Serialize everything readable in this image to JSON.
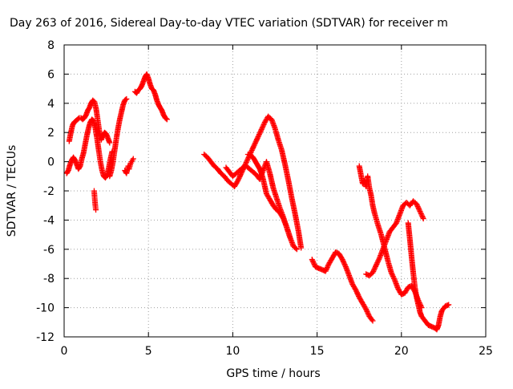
{
  "chart_data": {
    "type": "scatter",
    "title": "Day 263 of 2016, Sidereal Day-to-day VTEC variation (SDTVAR) for receiver m",
    "xlabel": "GPS time / hours",
    "ylabel": "SDTVAR / TECUs",
    "xlim": [
      0,
      25
    ],
    "ylim": [
      -12,
      8
    ],
    "xticks": [
      0,
      5,
      10,
      15,
      20,
      25
    ],
    "yticks": [
      -12,
      -10,
      -8,
      -6,
      -4,
      -2,
      0,
      2,
      4,
      6,
      8
    ],
    "grid": true,
    "marker": "plus",
    "color": "#ff0000",
    "series": [
      {
        "x": [
          0.15,
          0.25,
          0.35,
          0.45,
          0.55,
          0.65,
          0.75,
          0.85,
          0.95,
          1.05,
          1.15,
          1.25,
          1.35,
          1.45,
          1.55,
          1.65,
          1.75,
          1.85,
          1.95,
          2.05,
          2.15,
          2.25,
          2.35,
          2.45,
          2.55,
          2.65,
          2.75,
          2.85
        ],
        "y": [
          -0.8,
          -0.6,
          -0.2,
          0.1,
          0.3,
          0.1,
          -0.2,
          -0.5,
          -0.3,
          0.2,
          0.6,
          1.2,
          1.8,
          2.3,
          2.7,
          2.9,
          2.8,
          2.3,
          1.6,
          0.8,
          0.0,
          -0.6,
          -1.0,
          -1.1,
          -0.9,
          -0.4,
          0.2,
          0.7
        ]
      },
      {
        "x": [
          0.3,
          0.4,
          0.5,
          0.6,
          0.7,
          0.8,
          0.9,
          1.0,
          1.1,
          1.2,
          1.3,
          1.4,
          1.5,
          1.6,
          1.7,
          1.8,
          1.9,
          2.0,
          2.1,
          2.2,
          2.3,
          2.4,
          2.5,
          2.6,
          2.7
        ],
        "y": [
          1.4,
          2.0,
          2.5,
          2.7,
          2.8,
          2.9,
          3.0,
          3.0,
          2.9,
          3.0,
          3.2,
          3.5,
          3.7,
          4.0,
          4.2,
          4.1,
          3.6,
          2.8,
          2.0,
          1.5,
          1.8,
          2.0,
          1.9,
          1.6,
          1.3
        ]
      },
      {
        "x": [
          1.78,
          1.8,
          1.82,
          1.84,
          1.86,
          1.88
        ],
        "y": [
          -2.0,
          -2.3,
          -2.6,
          -2.9,
          -3.1,
          -3.3
        ]
      },
      {
        "x": [
          2.7,
          2.8,
          2.9,
          3.0,
          3.1,
          3.2,
          3.3,
          3.4,
          3.5,
          3.6,
          3.7
        ],
        "y": [
          -1.0,
          -0.6,
          0.0,
          0.8,
          1.6,
          2.3,
          2.9,
          3.4,
          3.9,
          4.2,
          4.3
        ]
      },
      {
        "x": [
          3.6,
          3.7,
          3.75,
          3.8,
          3.85,
          3.9,
          3.95,
          4.0,
          4.05,
          4.1
        ],
        "y": [
          -0.6,
          -0.8,
          -0.5,
          -0.3,
          -0.5,
          -0.3,
          -0.1,
          0.0,
          0.1,
          0.2
        ]
      },
      {
        "x": [
          4.2,
          4.3,
          4.4,
          4.5,
          4.6,
          4.7,
          4.8,
          4.9,
          5.0,
          5.1,
          5.2,
          5.3,
          5.4,
          5.5,
          5.6,
          5.7,
          5.8,
          5.9,
          6.0,
          6.1
        ],
        "y": [
          4.8,
          4.7,
          4.9,
          5.0,
          5.2,
          5.5,
          5.8,
          6.0,
          5.7,
          5.3,
          5.0,
          4.9,
          4.6,
          4.2,
          3.9,
          3.7,
          3.5,
          3.2,
          3.0,
          2.9
        ]
      },
      {
        "x": [
          8.3,
          8.5,
          8.7,
          8.9,
          9.1,
          9.3,
          9.5,
          9.7,
          9.9,
          10.1,
          10.3,
          10.5,
          10.7,
          10.9,
          11.1,
          11.3,
          11.5,
          11.7,
          11.9,
          12.1,
          12.3,
          12.5,
          12.7,
          12.9,
          13.1,
          13.3,
          13.5,
          13.7,
          13.9,
          14.05
        ],
        "y": [
          0.5,
          0.3,
          0.0,
          -0.3,
          -0.5,
          -0.8,
          -1.0,
          -1.3,
          -1.5,
          -1.7,
          -1.3,
          -0.8,
          -0.3,
          0.2,
          0.7,
          1.2,
          1.7,
          2.2,
          2.7,
          3.1,
          2.9,
          2.3,
          1.5,
          0.8,
          -0.2,
          -1.3,
          -2.5,
          -3.6,
          -4.8,
          -5.9
        ]
      },
      {
        "x": [
          9.6,
          9.8,
          10.0,
          10.2,
          10.4,
          10.6,
          10.8,
          11.0,
          11.2,
          11.4,
          11.6,
          11.8,
          12.0,
          12.2,
          12.4,
          12.6,
          12.8,
          13.0,
          13.2,
          13.4
        ],
        "y": [
          -0.4,
          -0.7,
          -1.0,
          -0.8,
          -0.6,
          -0.4,
          -0.3,
          -0.5,
          -0.7,
          -0.9,
          -1.2,
          -0.6,
          0.0,
          -0.8,
          -1.8,
          -2.5,
          -3.2,
          -3.8,
          -4.5,
          -5.2
        ]
      },
      {
        "x": [
          10.9,
          11.0,
          11.1,
          11.2,
          11.3,
          11.4,
          11.5,
          11.6,
          11.7,
          11.8,
          11.9,
          12.0,
          12.2,
          12.4,
          12.6,
          12.8,
          13.0,
          13.2,
          13.4,
          13.6,
          13.8
        ],
        "y": [
          0.5,
          0.5,
          0.4,
          0.3,
          0.1,
          -0.1,
          -0.3,
          -0.5,
          -0.8,
          -1.2,
          -1.7,
          -2.2,
          -2.6,
          -3.0,
          -3.3,
          -3.5,
          -3.9,
          -4.5,
          -5.2,
          -5.8,
          -6.0
        ]
      },
      {
        "x": [
          14.7,
          14.9,
          15.1,
          15.3,
          15.5,
          15.7,
          15.9,
          16.1,
          16.3,
          16.5,
          16.7,
          16.9,
          17.1,
          17.3,
          17.5,
          17.7,
          17.9,
          18.1,
          18.3
        ],
        "y": [
          -6.7,
          -7.2,
          -7.3,
          -7.4,
          -7.5,
          -7.0,
          -6.6,
          -6.2,
          -6.3,
          -6.7,
          -7.2,
          -7.8,
          -8.4,
          -8.8,
          -9.3,
          -9.7,
          -10.1,
          -10.6,
          -10.9
        ]
      },
      {
        "x": [
          17.5,
          17.6,
          17.7,
          17.8,
          17.9,
          18.0,
          18.1,
          18.2,
          18.3,
          18.4,
          18.6,
          18.8,
          19.0,
          19.2,
          19.4,
          19.6,
          19.8,
          20.0,
          20.2,
          20.4,
          20.6,
          20.8,
          21.0,
          21.2
        ],
        "y": [
          -0.3,
          -0.9,
          -1.5,
          -1.3,
          -1.7,
          -1.0,
          -1.8,
          -2.3,
          -3.0,
          -3.5,
          -4.3,
          -5.0,
          -5.9,
          -6.8,
          -7.6,
          -8.1,
          -8.7,
          -9.1,
          -9.0,
          -8.6,
          -8.5,
          -8.9,
          -9.5,
          -10.0
        ]
      },
      {
        "x": [
          17.9,
          18.1,
          18.3,
          18.5,
          18.7,
          18.9,
          19.1,
          19.3,
          19.5,
          19.7,
          19.9,
          20.1,
          20.3,
          20.5,
          20.7,
          20.9,
          21.1,
          21.3
        ],
        "y": [
          -7.7,
          -7.8,
          -7.6,
          -7.1,
          -6.6,
          -6.0,
          -5.4,
          -4.8,
          -4.5,
          -4.2,
          -3.6,
          -3.0,
          -2.8,
          -3.0,
          -2.7,
          -2.9,
          -3.4,
          -3.9
        ]
      },
      {
        "x": [
          20.4,
          20.5,
          20.6,
          20.7,
          20.8,
          20.9,
          21.0,
          21.1,
          21.2,
          21.4,
          21.6,
          21.8,
          22.0,
          22.1,
          22.2,
          22.3,
          22.4,
          22.6,
          22.8
        ],
        "y": [
          -4.2,
          -5.3,
          -6.5,
          -7.6,
          -8.6,
          -9.3,
          -9.8,
          -10.3,
          -10.6,
          -10.9,
          -11.2,
          -11.3,
          -11.4,
          -11.5,
          -11.2,
          -10.6,
          -10.2,
          -9.9,
          -9.8
        ]
      }
    ]
  }
}
